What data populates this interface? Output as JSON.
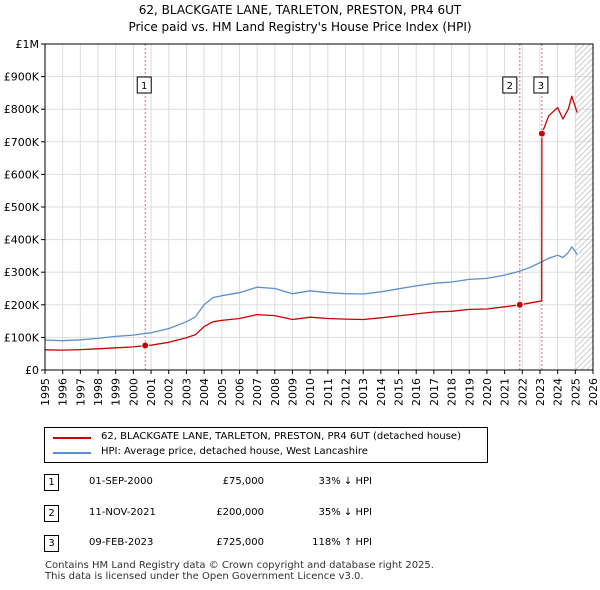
{
  "title_line1": "62, BLACKGATE LANE, TARLETON, PRESTON, PR4 6UT",
  "title_line2": "Price paid vs. HM Land Registry's House Price Index (HPI)",
  "chart_data": {
    "type": "line",
    "title": "Price paid vs. HM Land Registry's House Price Index (HPI)",
    "xlim": [
      1995,
      2026
    ],
    "ylim": [
      0,
      1000000
    ],
    "x_ticks": [
      "1995",
      "1996",
      "1997",
      "1998",
      "1999",
      "2000",
      "2001",
      "2002",
      "2003",
      "2004",
      "2005",
      "2006",
      "2007",
      "2008",
      "2009",
      "2010",
      "2011",
      "2012",
      "2013",
      "2014",
      "2015",
      "2016",
      "2017",
      "2018",
      "2019",
      "2020",
      "2021",
      "2022",
      "2023",
      "2024",
      "2025",
      "2026"
    ],
    "y_ticks": [
      {
        "value": 0,
        "label": "£0"
      },
      {
        "value": 100000,
        "label": "£100K"
      },
      {
        "value": 200000,
        "label": "£200K"
      },
      {
        "value": 300000,
        "label": "£300K"
      },
      {
        "value": 400000,
        "label": "£400K"
      },
      {
        "value": 500000,
        "label": "£500K"
      },
      {
        "value": 600000,
        "label": "£600K"
      },
      {
        "value": 700000,
        "label": "£700K"
      },
      {
        "value": 800000,
        "label": "£800K"
      },
      {
        "value": 900000,
        "label": "£900K"
      },
      {
        "value": 1000000,
        "label": "£1M"
      }
    ],
    "future_shade_from": 2025.0,
    "series": [
      {
        "name": "62, BLACKGATE LANE, TARLETON, PRESTON, PR4 6UT (detached house)",
        "color": "#cc0000",
        "points": [
          [
            1995,
            62000
          ],
          [
            1996,
            61000
          ],
          [
            1997,
            62500
          ],
          [
            1998,
            65000
          ],
          [
            1999,
            68000
          ],
          [
            2000,
            71000
          ],
          [
            2000.67,
            75000
          ],
          [
            2001,
            76000
          ],
          [
            2002,
            85000
          ],
          [
            2003,
            99000
          ],
          [
            2003.5,
            108000
          ],
          [
            2004,
            133000
          ],
          [
            2004.5,
            148000
          ],
          [
            2005,
            152000
          ],
          [
            2006,
            158000
          ],
          [
            2007,
            170000
          ],
          [
            2008,
            167000
          ],
          [
            2009,
            155000
          ],
          [
            2010,
            162000
          ],
          [
            2011,
            158000
          ],
          [
            2012,
            156000
          ],
          [
            2013,
            155000
          ],
          [
            2014,
            160000
          ],
          [
            2015,
            166000
          ],
          [
            2016,
            172000
          ],
          [
            2017,
            178000
          ],
          [
            2018,
            180000
          ],
          [
            2019,
            186000
          ],
          [
            2020,
            187000
          ],
          [
            2021,
            194000
          ],
          [
            2021.86,
            200000
          ],
          [
            2022.5,
            206000
          ],
          [
            2023.1,
            212000
          ],
          [
            2023.11,
            725000
          ],
          [
            2023.5,
            780000
          ],
          [
            2024,
            805000
          ],
          [
            2024.3,
            770000
          ],
          [
            2024.6,
            800000
          ],
          [
            2024.8,
            840000
          ],
          [
            2025.1,
            790000
          ]
        ]
      },
      {
        "name": "HPI: Average price, detached house, West Lancashire",
        "color": "#5b8fd0",
        "points": [
          [
            1995,
            92000
          ],
          [
            1996,
            90000
          ],
          [
            1997,
            92500
          ],
          [
            1998,
            97000
          ],
          [
            1999,
            103000
          ],
          [
            2000,
            107000
          ],
          [
            2000.67,
            112000
          ],
          [
            2001,
            114000
          ],
          [
            2002,
            127000
          ],
          [
            2003,
            148000
          ],
          [
            2003.5,
            163000
          ],
          [
            2004,
            200000
          ],
          [
            2004.5,
            222000
          ],
          [
            2005,
            228000
          ],
          [
            2006,
            237000
          ],
          [
            2007,
            254000
          ],
          [
            2008,
            250000
          ],
          [
            2009,
            234000
          ],
          [
            2010,
            243000
          ],
          [
            2011,
            237000
          ],
          [
            2012,
            234000
          ],
          [
            2013,
            233000
          ],
          [
            2014,
            240000
          ],
          [
            2015,
            249000
          ],
          [
            2016,
            258000
          ],
          [
            2017,
            266000
          ],
          [
            2018,
            270000
          ],
          [
            2019,
            278000
          ],
          [
            2020,
            281000
          ],
          [
            2021,
            291000
          ],
          [
            2021.86,
            303000
          ],
          [
            2022.5,
            316000
          ],
          [
            2023.1,
            332000
          ],
          [
            2023.5,
            343000
          ],
          [
            2024,
            352000
          ],
          [
            2024.3,
            345000
          ],
          [
            2024.6,
            360000
          ],
          [
            2024.8,
            378000
          ],
          [
            2025.1,
            355000
          ]
        ]
      }
    ],
    "sales": [
      {
        "id": "1",
        "x": 2000.67,
        "price": 75000,
        "date": "01-SEP-2000",
        "price_label": "£75,000",
        "hpi": "33% ↓ HPI"
      },
      {
        "id": "2",
        "x": 2021.86,
        "price": 200000,
        "date": "11-NOV-2021",
        "price_label": "£200,000",
        "hpi": "35% ↓ HPI"
      },
      {
        "id": "3",
        "x": 2023.11,
        "price": 725000,
        "date": "09-FEB-2023",
        "price_label": "£725,000",
        "hpi": "118% ↑ HPI"
      }
    ]
  },
  "legend": {
    "property_label": "62, BLACKGATE LANE, TARLETON, PRESTON, PR4 6UT (detached house)",
    "hpi_label": "HPI: Average price, detached house, West Lancashire",
    "property_color": "#cc0000",
    "hpi_color": "#5b8fd0"
  },
  "footer": {
    "line1": "Contains HM Land Registry data © Crown copyright and database right 2025.",
    "line2": "This data is licensed under the Open Government Licence v3.0."
  }
}
